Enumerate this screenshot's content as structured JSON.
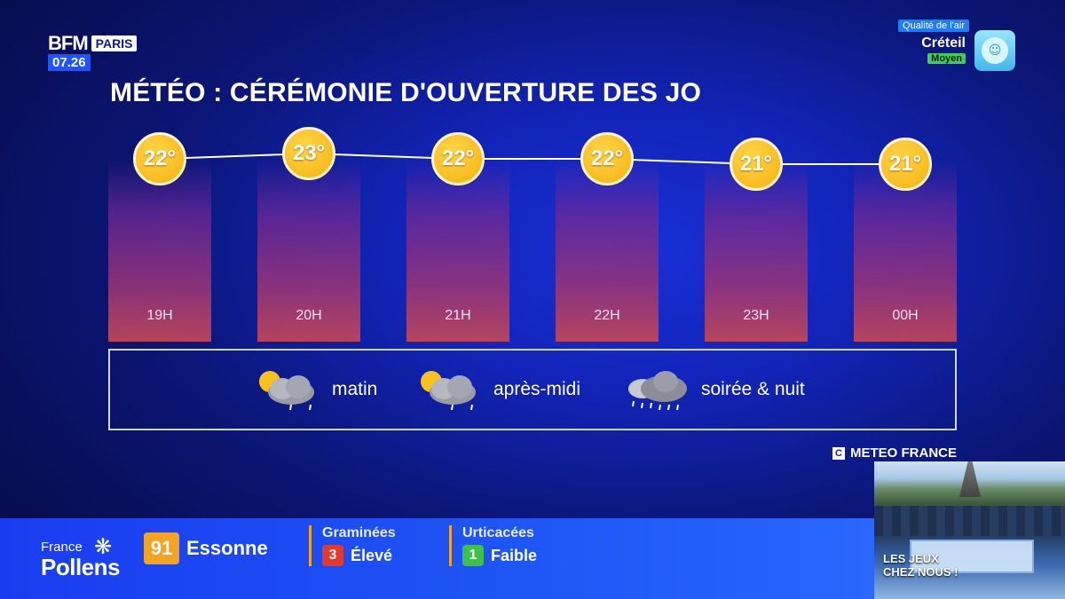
{
  "channel": {
    "logo": "BFM",
    "city": "PARIS",
    "time": "07.26"
  },
  "air_quality": {
    "heading": "Qualité de l'air",
    "city": "Créteil",
    "level": "Moyen",
    "icon": "air-quality-icon"
  },
  "title": "MÉTÉO : CÉRÉMONIE D'OUVERTURE DES JO",
  "chart_data": {
    "type": "line",
    "title": "MÉTÉO : CÉRÉMONIE D'OUVERTURE DES JO",
    "categories": [
      "19H",
      "20H",
      "21H",
      "22H",
      "23H",
      "00H"
    ],
    "values": [
      22,
      23,
      22,
      22,
      21,
      21
    ],
    "value_labels": [
      "22°",
      "23°",
      "22°",
      "22°",
      "21°",
      "21°"
    ],
    "unit": "°",
    "grid": false,
    "colors": {
      "marker": "#f5b20c",
      "column_bottom": "#be465a",
      "column_top": "#4a1c96"
    }
  },
  "legend": [
    {
      "label": "matin",
      "icon": "sun-cloud-rain-icon"
    },
    {
      "label": "après-midi",
      "icon": "sun-cloud-rain-icon"
    },
    {
      "label": "soirée & nuit",
      "icon": "cloud-showers-icon"
    }
  ],
  "source": "METEO FRANCE",
  "pollens": {
    "brand_top": "France",
    "brand_bottom": "Pollens",
    "dept_number": "91",
    "dept_name": "Essonne",
    "items": [
      {
        "name": "Graminées",
        "level_number": "3",
        "level": "Élevé",
        "color": "#e23a2f"
      },
      {
        "name": "Urticacées",
        "level_number": "1",
        "level": "Faible",
        "color": "#3cc24a"
      }
    ]
  },
  "thumbnail": {
    "caption_line1": "LES JEUX",
    "caption_line2": "CHEZ NOUS !"
  }
}
